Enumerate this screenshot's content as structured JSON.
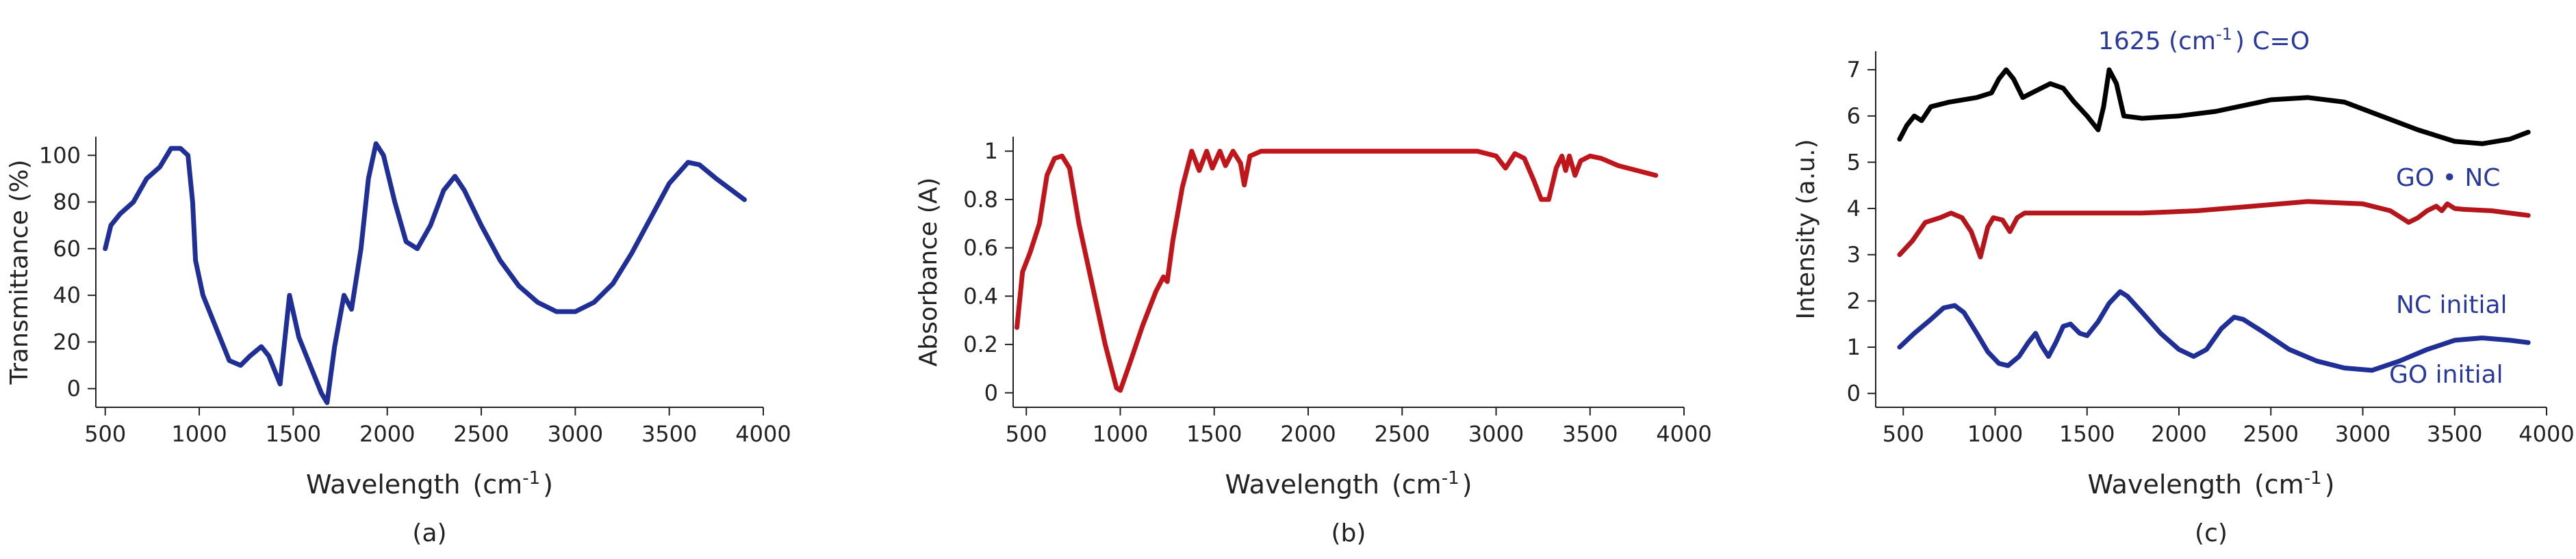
{
  "chart_data": [
    {
      "type": "line",
      "panel_label": "(a)",
      "xlabel": "Wavelength",
      "xunit": "cm",
      "xunit_exp": "-1",
      "ylabel": "Transmittance (%)",
      "xlim": [
        450,
        4000
      ],
      "ylim": [
        -8,
        108
      ],
      "xticks": [
        500,
        1000,
        1500,
        2000,
        2500,
        3000,
        3500,
        4000
      ],
      "yticks": [
        0,
        20,
        40,
        60,
        80,
        100
      ],
      "series": [
        {
          "name": "Transmittance",
          "color": "#1f2f96",
          "points": [
            [
              500,
              60
            ],
            [
              530,
              70
            ],
            [
              580,
              75
            ],
            [
              650,
              80
            ],
            [
              720,
              90
            ],
            [
              790,
              95
            ],
            [
              850,
              103
            ],
            [
              900,
              103
            ],
            [
              940,
              100
            ],
            [
              965,
              80
            ],
            [
              980,
              55
            ],
            [
              1020,
              40
            ],
            [
              1100,
              24
            ],
            [
              1160,
              12
            ],
            [
              1220,
              10
            ],
            [
              1270,
              14
            ],
            [
              1330,
              18
            ],
            [
              1370,
              14
            ],
            [
              1430,
              2
            ],
            [
              1480,
              40
            ],
            [
              1530,
              22
            ],
            [
              1600,
              8
            ],
            [
              1650,
              -2
            ],
            [
              1680,
              -6
            ],
            [
              1720,
              18
            ],
            [
              1770,
              40
            ],
            [
              1810,
              34
            ],
            [
              1860,
              60
            ],
            [
              1900,
              90
            ],
            [
              1940,
              105
            ],
            [
              1980,
              100
            ],
            [
              2040,
              80
            ],
            [
              2100,
              63
            ],
            [
              2160,
              60
            ],
            [
              2230,
              70
            ],
            [
              2300,
              85
            ],
            [
              2360,
              91
            ],
            [
              2410,
              85
            ],
            [
              2500,
              70
            ],
            [
              2600,
              55
            ],
            [
              2700,
              44
            ],
            [
              2800,
              37
            ],
            [
              2900,
              33
            ],
            [
              3000,
              33
            ],
            [
              3100,
              37
            ],
            [
              3200,
              45
            ],
            [
              3300,
              58
            ],
            [
              3400,
              73
            ],
            [
              3500,
              88
            ],
            [
              3600,
              97
            ],
            [
              3660,
              96
            ],
            [
              3750,
              90
            ],
            [
              3900,
              81
            ]
          ]
        }
      ]
    },
    {
      "type": "line",
      "panel_label": "(b)",
      "xlabel": "Wavelength",
      "xunit": "cm",
      "xunit_exp": "-1",
      "ylabel": "Absorbance (A)",
      "xlim": [
        430,
        4000
      ],
      "ylim": [
        -0.06,
        1.06
      ],
      "xticks": [
        500,
        1000,
        1500,
        2000,
        2500,
        3000,
        3500,
        4000
      ],
      "yticks": [
        "0",
        "0.2",
        "0.4",
        "0.6",
        "0.8",
        "1"
      ],
      "series": [
        {
          "name": "Absorbance",
          "color": "#c0161b",
          "points": [
            [
              450,
              0.27
            ],
            [
              480,
              0.5
            ],
            [
              520,
              0.58
            ],
            [
              570,
              0.7
            ],
            [
              610,
              0.9
            ],
            [
              650,
              0.97
            ],
            [
              690,
              0.98
            ],
            [
              730,
              0.93
            ],
            [
              780,
              0.7
            ],
            [
              850,
              0.45
            ],
            [
              920,
              0.2
            ],
            [
              980,
              0.02
            ],
            [
              1000,
              0.01
            ],
            [
              1050,
              0.12
            ],
            [
              1120,
              0.28
            ],
            [
              1190,
              0.42
            ],
            [
              1230,
              0.48
            ],
            [
              1250,
              0.46
            ],
            [
              1280,
              0.63
            ],
            [
              1330,
              0.85
            ],
            [
              1380,
              1.0
            ],
            [
              1420,
              0.92
            ],
            [
              1460,
              1.0
            ],
            [
              1490,
              0.93
            ],
            [
              1530,
              1.0
            ],
            [
              1560,
              0.94
            ],
            [
              1600,
              1.0
            ],
            [
              1640,
              0.95
            ],
            [
              1660,
              0.86
            ],
            [
              1690,
              0.98
            ],
            [
              1750,
              1.0
            ],
            [
              2000,
              1.0
            ],
            [
              2500,
              1.0
            ],
            [
              2900,
              1.0
            ],
            [
              3000,
              0.98
            ],
            [
              3050,
              0.93
            ],
            [
              3100,
              0.99
            ],
            [
              3150,
              0.97
            ],
            [
              3200,
              0.88
            ],
            [
              3240,
              0.8
            ],
            [
              3280,
              0.8
            ],
            [
              3320,
              0.93
            ],
            [
              3350,
              0.98
            ],
            [
              3370,
              0.92
            ],
            [
              3390,
              0.98
            ],
            [
              3420,
              0.9
            ],
            [
              3450,
              0.96
            ],
            [
              3500,
              0.98
            ],
            [
              3560,
              0.97
            ],
            [
              3650,
              0.94
            ],
            [
              3750,
              0.92
            ],
            [
              3850,
              0.9
            ]
          ]
        }
      ]
    },
    {
      "type": "line",
      "panel_label": "(c)",
      "xlabel": "Wavelength",
      "xunit": "cm",
      "xunit_exp": "-1",
      "ylabel": "Intensity (a.u.)",
      "xlim": [
        350,
        4000
      ],
      "ylim": [
        -0.3,
        7.4
      ],
      "xticks": [
        500,
        1000,
        1500,
        2000,
        2500,
        3000,
        3500,
        4000
      ],
      "yticks": [
        0,
        1,
        2,
        3,
        4,
        5,
        6,
        7
      ],
      "annotation": "1625 (cm",
      "annotation_exp": "-1",
      "annotation_tail": ") C=O",
      "series": [
        {
          "name": "GO • NC",
          "color": "#000000",
          "points": [
            [
              480,
              5.5
            ],
            [
              520,
              5.8
            ],
            [
              560,
              6.0
            ],
            [
              600,
              5.9
            ],
            [
              650,
              6.2
            ],
            [
              750,
              6.3
            ],
            [
              900,
              6.4
            ],
            [
              980,
              6.5
            ],
            [
              1020,
              6.8
            ],
            [
              1060,
              7.0
            ],
            [
              1100,
              6.8
            ],
            [
              1150,
              6.4
            ],
            [
              1200,
              6.5
            ],
            [
              1250,
              6.6
            ],
            [
              1300,
              6.7
            ],
            [
              1370,
              6.6
            ],
            [
              1430,
              6.3
            ],
            [
              1500,
              6.0
            ],
            [
              1560,
              5.7
            ],
            [
              1590,
              6.2
            ],
            [
              1620,
              7.0
            ],
            [
              1660,
              6.7
            ],
            [
              1700,
              6.0
            ],
            [
              1800,
              5.95
            ],
            [
              2000,
              6.0
            ],
            [
              2200,
              6.1
            ],
            [
              2500,
              6.35
            ],
            [
              2700,
              6.4
            ],
            [
              2900,
              6.3
            ],
            [
              3100,
              6.0
            ],
            [
              3300,
              5.7
            ],
            [
              3500,
              5.45
            ],
            [
              3650,
              5.4
            ],
            [
              3800,
              5.5
            ],
            [
              3900,
              5.65
            ]
          ]
        },
        {
          "name": "NC initial",
          "color": "#b5161b",
          "points": [
            [
              480,
              3.0
            ],
            [
              550,
              3.3
            ],
            [
              620,
              3.7
            ],
            [
              700,
              3.8
            ],
            [
              760,
              3.9
            ],
            [
              820,
              3.8
            ],
            [
              870,
              3.5
            ],
            [
              920,
              2.95
            ],
            [
              960,
              3.6
            ],
            [
              990,
              3.8
            ],
            [
              1040,
              3.75
            ],
            [
              1080,
              3.5
            ],
            [
              1120,
              3.8
            ],
            [
              1160,
              3.9
            ],
            [
              1300,
              3.9
            ],
            [
              1500,
              3.9
            ],
            [
              1800,
              3.9
            ],
            [
              2100,
              3.95
            ],
            [
              2400,
              4.05
            ],
            [
              2700,
              4.15
            ],
            [
              3000,
              4.1
            ],
            [
              3150,
              3.95
            ],
            [
              3250,
              3.7
            ],
            [
              3300,
              3.8
            ],
            [
              3350,
              3.95
            ],
            [
              3400,
              4.05
            ],
            [
              3430,
              3.95
            ],
            [
              3460,
              4.1
            ],
            [
              3500,
              4.0
            ],
            [
              3550,
              3.98
            ],
            [
              3700,
              3.95
            ],
            [
              3900,
              3.85
            ]
          ]
        },
        {
          "name": "GO initial",
          "color": "#1f2f96",
          "points": [
            [
              480,
              1.0
            ],
            [
              560,
              1.3
            ],
            [
              650,
              1.6
            ],
            [
              720,
              1.85
            ],
            [
              780,
              1.9
            ],
            [
              830,
              1.75
            ],
            [
              900,
              1.3
            ],
            [
              960,
              0.9
            ],
            [
              1020,
              0.65
            ],
            [
              1070,
              0.6
            ],
            [
              1130,
              0.8
            ],
            [
              1180,
              1.1
            ],
            [
              1220,
              1.3
            ],
            [
              1250,
              1.05
            ],
            [
              1290,
              0.8
            ],
            [
              1330,
              1.1
            ],
            [
              1370,
              1.45
            ],
            [
              1410,
              1.5
            ],
            [
              1460,
              1.3
            ],
            [
              1500,
              1.25
            ],
            [
              1560,
              1.55
            ],
            [
              1620,
              1.95
            ],
            [
              1680,
              2.2
            ],
            [
              1720,
              2.1
            ],
            [
              1800,
              1.75
            ],
            [
              1900,
              1.3
            ],
            [
              2000,
              0.95
            ],
            [
              2080,
              0.8
            ],
            [
              2150,
              0.95
            ],
            [
              2230,
              1.4
            ],
            [
              2300,
              1.65
            ],
            [
              2350,
              1.6
            ],
            [
              2450,
              1.35
            ],
            [
              2600,
              0.95
            ],
            [
              2750,
              0.7
            ],
            [
              2900,
              0.55
            ],
            [
              3050,
              0.5
            ],
            [
              3200,
              0.7
            ],
            [
              3350,
              0.95
            ],
            [
              3500,
              1.15
            ],
            [
              3650,
              1.2
            ],
            [
              3800,
              1.15
            ],
            [
              3900,
              1.1
            ]
          ]
        }
      ]
    }
  ]
}
